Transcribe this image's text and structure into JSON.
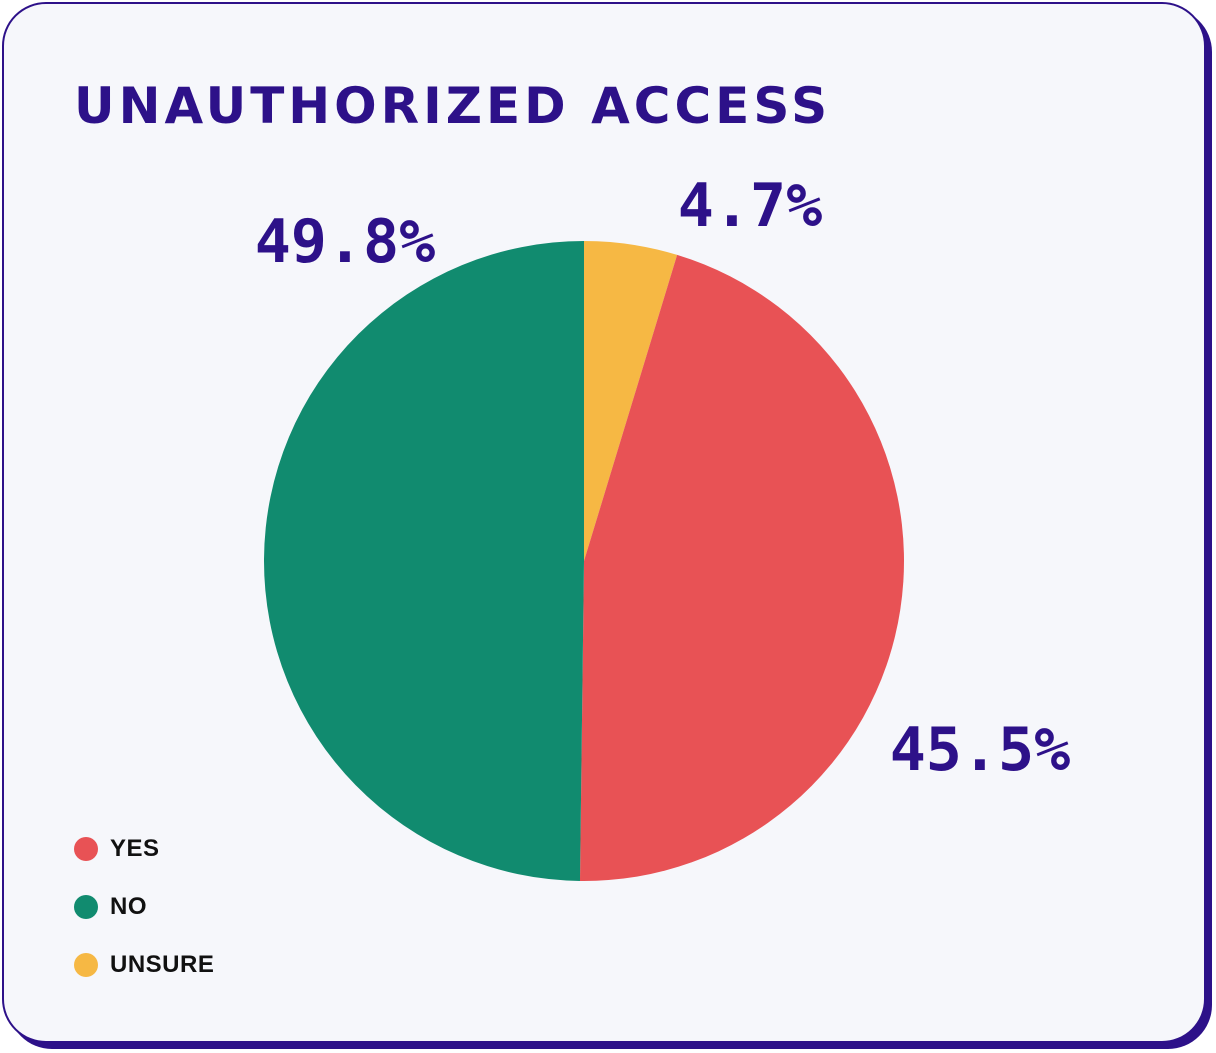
{
  "chart_data": {
    "type": "pie",
    "title": "UNAUTHORIZED ACCESS",
    "slices": [
      {
        "label": "YES",
        "value": 45.5,
        "value_label": "45.5%",
        "color": "#e85255"
      },
      {
        "label": "NO",
        "value": 49.8,
        "value_label": "49.8%",
        "color": "#118b6f"
      },
      {
        "label": "UNSURE",
        "value": 4.7,
        "value_label": "4.7%",
        "color": "#f6b844"
      }
    ],
    "start": "top",
    "direction": "clockwise",
    "slice_order": [
      "UNSURE",
      "YES",
      "NO"
    ],
    "legend_placement": "bottom-left"
  },
  "colors": {
    "title": "#2d1189",
    "card_border": "#2d1189",
    "card_background": "#f6f7fb"
  }
}
